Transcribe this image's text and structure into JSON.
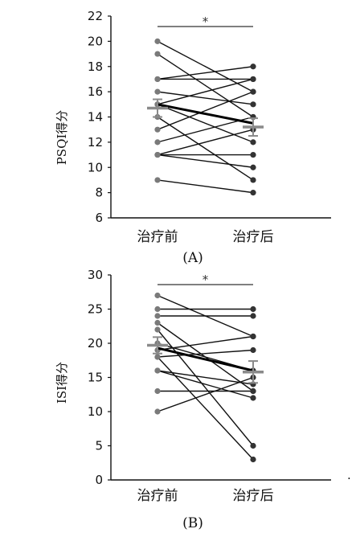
{
  "chart_data": [
    {
      "type": "line",
      "panel_label": "(A)",
      "ylabel": "PSQI得分",
      "categories": [
        "治疗前",
        "治疗后"
      ],
      "ylim": [
        6,
        22
      ],
      "yticks": [
        6,
        8,
        10,
        12,
        14,
        16,
        18,
        20,
        22
      ],
      "significance": "*",
      "mean": [
        14.7,
        13.2
      ],
      "error": [
        0.7,
        0.7
      ],
      "mean_change_line": [
        15.0,
        13.5
      ],
      "series": [
        {
          "values": [
            20,
            16
          ]
        },
        {
          "values": [
            19,
            14
          ]
        },
        {
          "values": [
            17,
            18
          ]
        },
        {
          "values": [
            17,
            17
          ]
        },
        {
          "values": [
            16,
            15
          ]
        },
        {
          "values": [
            15,
            17
          ]
        },
        {
          "values": [
            15,
            12
          ]
        },
        {
          "values": [
            14,
            9
          ]
        },
        {
          "values": [
            13,
            16
          ]
        },
        {
          "values": [
            12,
            14
          ]
        },
        {
          "values": [
            11,
            13
          ]
        },
        {
          "values": [
            11,
            11
          ]
        },
        {
          "values": [
            11,
            10
          ]
        },
        {
          "values": [
            9,
            8
          ]
        }
      ]
    },
    {
      "type": "line",
      "panel_label": "(B)",
      "ylabel": "ISI得分",
      "categories": [
        "治疗前",
        "治疗后"
      ],
      "ylim": [
        0,
        30
      ],
      "yticks": [
        0,
        5,
        10,
        15,
        20,
        25,
        30
      ],
      "significance": "*",
      "mean": [
        19.7,
        15.8
      ],
      "error": [
        1.2,
        1.6
      ],
      "mean_change_line": [
        19.3,
        16.0
      ],
      "series": [
        {
          "values": [
            27,
            21
          ]
        },
        {
          "values": [
            25,
            25
          ]
        },
        {
          "values": [
            24,
            24
          ]
        },
        {
          "values": [
            23,
            13
          ]
        },
        {
          "values": [
            22,
            5
          ]
        },
        {
          "values": [
            20,
            16
          ]
        },
        {
          "values": [
            19,
            21
          ]
        },
        {
          "values": [
            18,
            19
          ]
        },
        {
          "values": [
            18,
            3
          ]
        },
        {
          "values": [
            16,
            14
          ]
        },
        {
          "values": [
            16,
            12
          ]
        },
        {
          "values": [
            13,
            13
          ]
        },
        {
          "values": [
            10,
            15
          ]
        }
      ]
    }
  ],
  "footnote_mark": "."
}
